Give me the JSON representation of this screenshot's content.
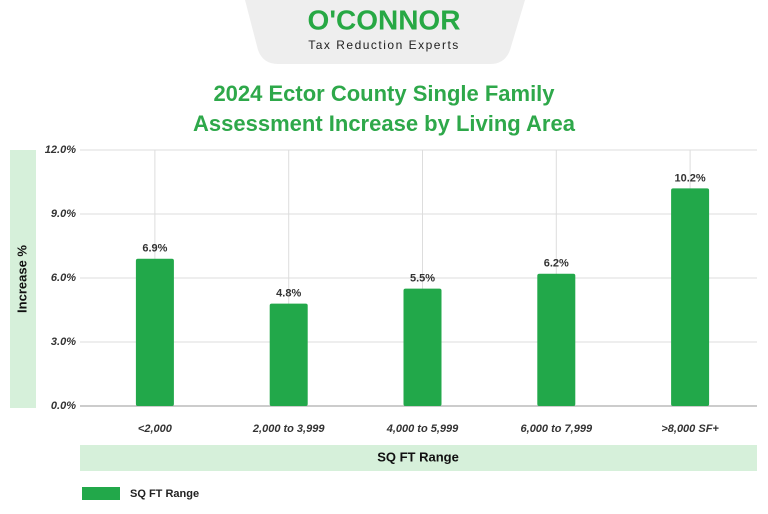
{
  "logo": {
    "name": "O'CONNOR",
    "tagline": "Tax Reduction Experts"
  },
  "chart_data": {
    "type": "bar",
    "title": "2024 Ector County Single Family",
    "subtitle": "Assessment Increase by Living Area",
    "x_label": "SQ FT Range",
    "y_label": "Increase %",
    "categories": [
      "<2,000",
      "2,000 to 3,999",
      "4,000 to 5,999",
      "6,000 to 7,999",
      ">8,000 SF+"
    ],
    "series": [
      {
        "name": "SQ FT Range",
        "color": "#22a84a",
        "values": [
          6.9,
          4.8,
          5.5,
          6.2,
          10.2
        ],
        "value_labels": [
          "6.9%",
          "4.8%",
          "5.5%",
          "6.2%",
          "10.2%"
        ]
      }
    ],
    "ylim": [
      0,
      12
    ],
    "yticks": [
      {
        "value": 0,
        "label": "0.0%"
      },
      {
        "value": 3,
        "label": "3.0%"
      },
      {
        "value": 6,
        "label": "6.0%"
      },
      {
        "value": 9,
        "label": "9.0%"
      },
      {
        "value": 12,
        "label": "12.0%"
      }
    ],
    "grid": true,
    "legend": "bottom-left"
  }
}
